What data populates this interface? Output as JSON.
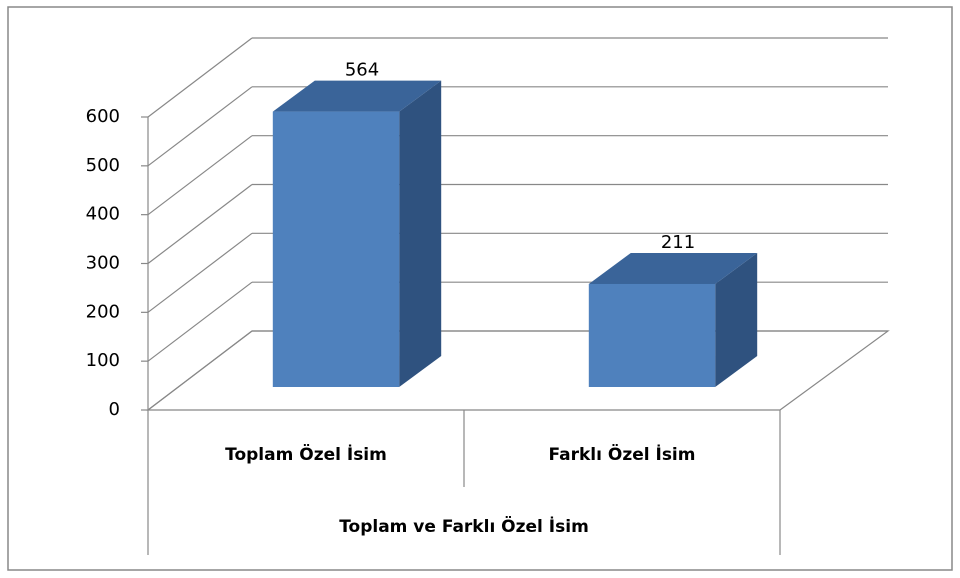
{
  "chart_data": {
    "type": "bar3d",
    "categories": [
      "Toplam Özel İsim",
      "Farklı Özel İsim"
    ],
    "values": [
      564,
      211
    ],
    "color": "#4f81bd",
    "x_label": "Toplam ve Farklı Özel İsim",
    "ylim": [
      0,
      600
    ],
    "yticks": [
      0,
      100,
      200,
      300,
      400,
      500,
      600
    ],
    "grid": true
  }
}
